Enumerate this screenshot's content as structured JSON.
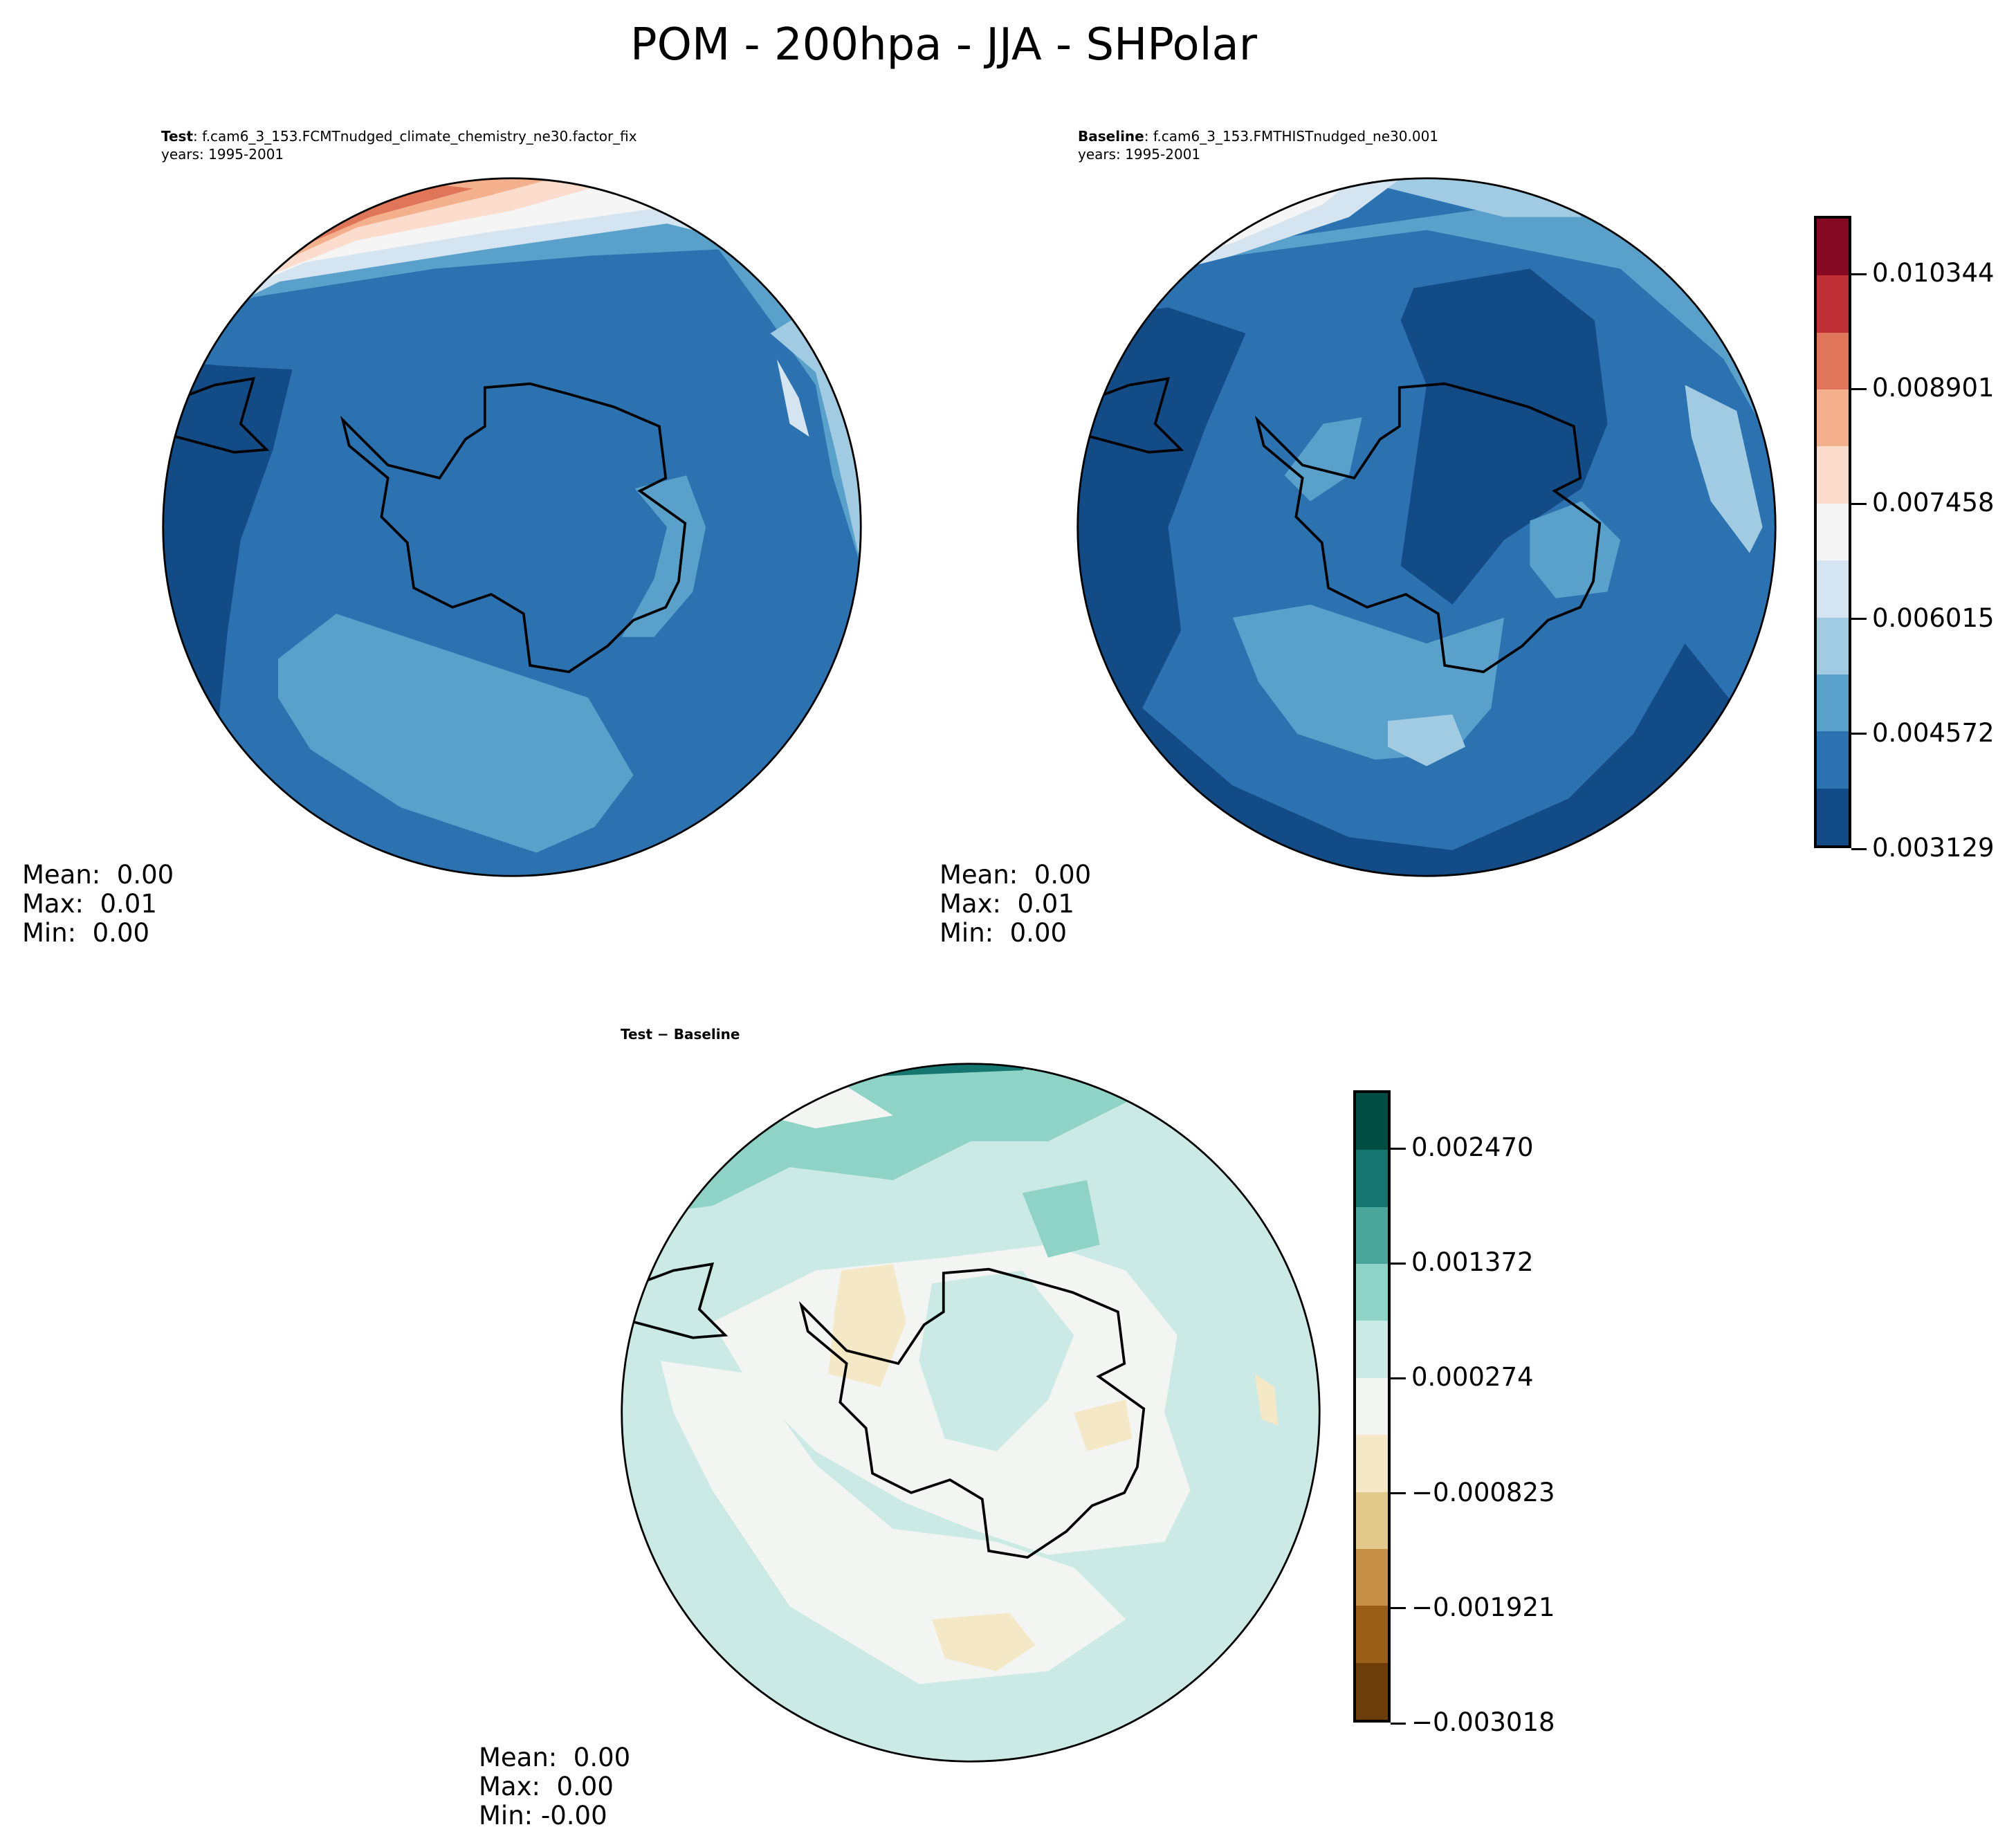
{
  "figure": {
    "title": "POM - 200hpa - JJA - SHPolar"
  },
  "panels": [
    {
      "label_bold": "Test",
      "label_rest": ": f.cam6_3_153.FCMTnudged_climate_chemistry_ne30.factor_fix",
      "years": "years: 1995-2001",
      "stats": {
        "mean": "Mean:  0.00",
        "max": "Max:  0.01",
        "min": "Min:  0.00"
      }
    },
    {
      "label_bold": "Baseline",
      "label_rest": ": f.cam6_3_153.FMTHISTnudged_ne30.001",
      "years": "years: 1995-2001",
      "stats": {
        "mean": "Mean:  0.00",
        "max": "Max:  0.01",
        "min": "Min:  0.00"
      }
    },
    {
      "label_bold": "Test − Baseline",
      "stats": {
        "mean": "Mean:  0.00",
        "max": "Max:  0.00",
        "min": "Min: -0.00"
      }
    }
  ],
  "chart_data": [
    {
      "type": "heatmap",
      "projection": "south-polar-stereographic",
      "colorbar": {
        "colormap": "RdBu_r",
        "ticks": [
          "0.003129",
          "0.004572",
          "0.006015",
          "0.007458",
          "0.008901",
          "0.010344"
        ],
        "level_colors": [
          "#134b86",
          "#2c72b1",
          "#59a0cb",
          "#a0cbe2",
          "#d4e5f1",
          "#f4f5f4",
          "#fcdccd",
          "#f4af8d",
          "#e07659",
          "#be2f36",
          "#870a24"
        ]
      }
    },
    {
      "type": "heatmap",
      "projection": "south-polar-stereographic",
      "colorbar": {
        "colormap": "BrBG",
        "ticks": [
          "−0.003018",
          "−0.001921",
          "−0.000823",
          "0.000274",
          "0.001372",
          "0.002470"
        ],
        "level_colors": [
          "#6a3d0a",
          "#9a5e18",
          "#c68f45",
          "#e0c98a",
          "#f5e8c6",
          "#f3f5f3",
          "#cbeae5",
          "#8fd3c6",
          "#4aa69a",
          "#157670",
          "#014d44"
        ]
      }
    }
  ]
}
